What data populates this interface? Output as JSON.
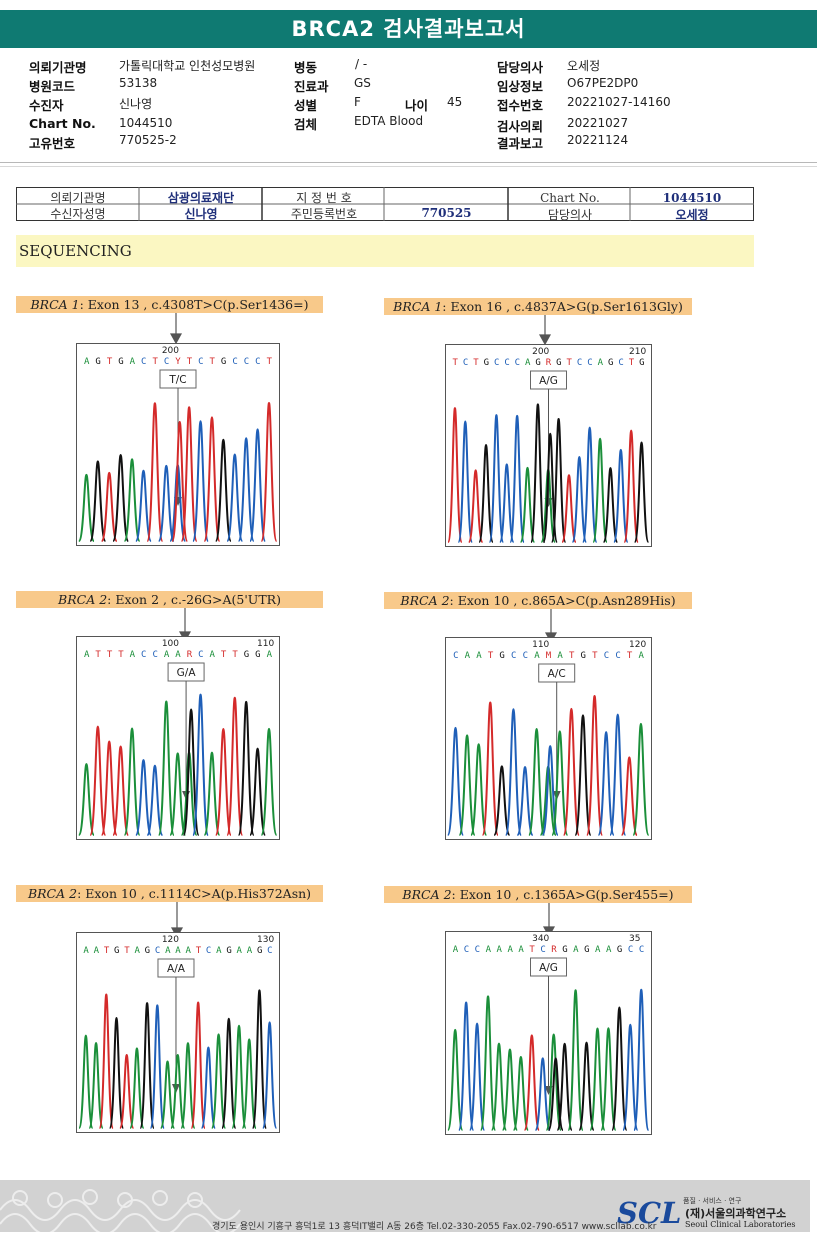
{
  "title": "BRCA2 검사결과보고서",
  "header": {
    "col1": [
      {
        "label": "의뢰기관명",
        "value": "가톨릭대학교 인천성모병원"
      },
      {
        "label": "병원코드",
        "value": "53138"
      },
      {
        "label": "수진자",
        "value": "신나영"
      },
      {
        "label": "Chart No.",
        "value": "1044510"
      },
      {
        "label": "고유번호",
        "value": "770525-2"
      }
    ],
    "col2": [
      {
        "label": "병동",
        "value": "/ -"
      },
      {
        "label": "진료과",
        "value": "GS"
      },
      {
        "label": "성별",
        "value": "F"
      },
      {
        "label": "검체",
        "value": "EDTA Blood"
      }
    ],
    "age": {
      "label": "나이",
      "value": "45"
    },
    "col3": [
      {
        "label": "담당의사",
        "value": "오세정"
      },
      {
        "label": "임상정보",
        "value": "O67PE2DP0"
      },
      {
        "label": "접수번호",
        "value": "20221027-14160"
      },
      {
        "label": "검사의뢰",
        "value": "20221027"
      },
      {
        "label": "결과보고",
        "value": "20221124"
      }
    ]
  },
  "patient_table": {
    "org_label": "의뢰기관명",
    "org_value": "삼광의료재단",
    "recipient_label": "수신자성명",
    "recipient_value": "신나영",
    "designation_label": "지 정 번 호",
    "designation_value": "",
    "resident_label": "주민등록번호",
    "resident_value": "770525",
    "chart_label": "Chart No.",
    "chart_value": "1044510",
    "doctor_label": "담당의사",
    "doctor_value": "오세정"
  },
  "section_title": "SEQUENCING",
  "variants": [
    {
      "gene": "BRCA 1",
      "text": ": Exon 13 , c.4308T>C(p.Ser1436=)",
      "seq": "AGTGACTCYTCTGCCCT",
      "pos_labels": [
        "200"
      ],
      "call": "T/C"
    },
    {
      "gene": "BRCA 1",
      "text": ": Exon 16 , c.4837A>G(p.Ser1613Gly)",
      "seq": "TCTGCCCAGRGTCCAGCTG",
      "pos_labels": [
        "200",
        "210"
      ],
      "call": "A/G"
    },
    {
      "gene": "BRCA 2",
      "text": ": Exon 2 , c.-26G>A(5'UTR)",
      "seq": "ATTTACCAARCATTGGA",
      "pos_labels": [
        "100",
        "110"
      ],
      "call": "G/A"
    },
    {
      "gene": "BRCA 2",
      "text": ": Exon 10 , c.865A>C(p.Asn289His)",
      "seq": "CAATGCCAMATGTCCTA",
      "pos_labels": [
        "110",
        "120"
      ],
      "call": "A/C"
    },
    {
      "gene": "BRCA 2",
      "text": ": Exon 10 , c.1114C>A(p.His372Asn)",
      "seq": "AATGTAGCAAATCAGAAGC",
      "pos_labels": [
        "120",
        "130"
      ],
      "call": "A/A"
    },
    {
      "gene": "BRCA 2",
      "text": ": Exon 10 , c.1365A>G(p.Ser455=)",
      "seq": "ACCAAAATCRGAGAAGCC",
      "pos_labels": [
        "340",
        "35"
      ],
      "call": "A/G"
    }
  ],
  "footer": {
    "address": "경기도 용인시 기흥구 흥덕1로 13 흥덕IT밸리 A동 26층   Tel.02-330-2055  Fax.02-790-6517  www.scllab.co.kr",
    "slogan": "품질 · 서비스 · 연구",
    "logo": "SCL",
    "org_ko": "(재)서울의과학연구소",
    "org_en": "Seoul Clinical Laboratories"
  },
  "colors": {
    "header": "#0f7a72",
    "A": "#1b8f3a",
    "C": "#1f5fb8",
    "G": "#111111",
    "T": "#d42a2a",
    "ambiguous": "#d42a2a"
  }
}
